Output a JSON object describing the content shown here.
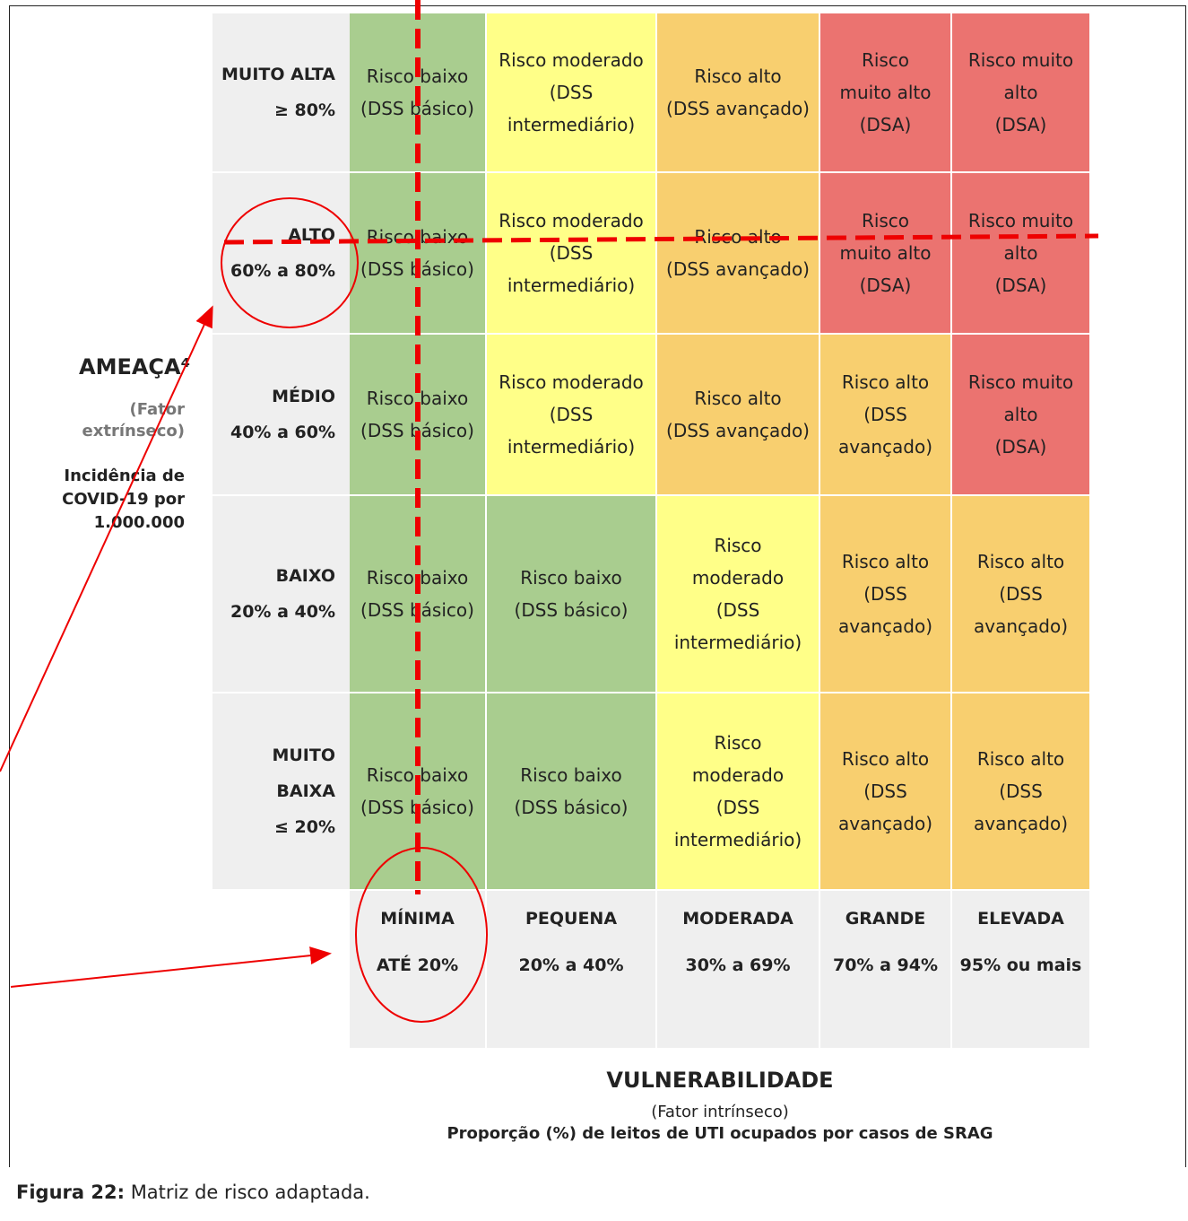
{
  "matrix": {
    "rows": [
      {
        "label_lines": [
          "MUITO ALTA",
          "≥ 80%"
        ],
        "cells": [
          {
            "color": "#a9cd8f",
            "lines": [
              "Risco baixo",
              "(DSS básico)"
            ]
          },
          {
            "color": "#ffff88",
            "lines": [
              "Risco moderado",
              "(DSS",
              "intermediário)"
            ]
          },
          {
            "color": "#f8cf6f",
            "lines": [
              "Risco alto",
              "(DSS avançado)"
            ]
          },
          {
            "color": "#eb7370",
            "lines": [
              "Risco",
              "muito alto",
              "(DSA)"
            ]
          },
          {
            "color": "#eb7370",
            "lines": [
              "Risco muito",
              "alto",
              "(DSA)"
            ]
          }
        ]
      },
      {
        "label_lines": [
          "ALTO",
          "60% a 80%"
        ],
        "cells": [
          {
            "color": "#a9cd8f",
            "lines": [
              "Risco baixo",
              "(DSS básico)"
            ]
          },
          {
            "color": "#ffff88",
            "lines": [
              "Risco moderado",
              "(DSS",
              "intermediário)"
            ]
          },
          {
            "color": "#f8cf6f",
            "lines": [
              "Risco alto",
              "(DSS avançado)"
            ]
          },
          {
            "color": "#eb7370",
            "lines": [
              "Risco",
              "muito alto",
              "(DSA)"
            ]
          },
          {
            "color": "#eb7370",
            "lines": [
              "Risco muito",
              "alto",
              "(DSA)"
            ]
          }
        ]
      },
      {
        "label_lines": [
          "MÉDIO",
          "40% a 60%"
        ],
        "cells": [
          {
            "color": "#a9cd8f",
            "lines": [
              "Risco baixo",
              "(DSS básico)"
            ]
          },
          {
            "color": "#ffff88",
            "lines": [
              "Risco moderado",
              "(DSS",
              "intermediário)"
            ]
          },
          {
            "color": "#f8cf6f",
            "lines": [
              "Risco alto",
              "(DSS avançado)"
            ]
          },
          {
            "color": "#f8cf6f",
            "lines": [
              "Risco alto",
              "(DSS",
              "avançado)"
            ]
          },
          {
            "color": "#eb7370",
            "lines": [
              "Risco muito",
              "alto",
              "(DSA)"
            ]
          }
        ]
      },
      {
        "label_lines": [
          "BAIXO",
          "20% a 40%"
        ],
        "cells": [
          {
            "color": "#a9cd8f",
            "lines": [
              "Risco baixo",
              "(DSS básico)"
            ]
          },
          {
            "color": "#a9cd8f",
            "lines": [
              "Risco baixo",
              "(DSS básico)"
            ]
          },
          {
            "color": "#ffff88",
            "lines": [
              "Risco",
              "moderado",
              "(DSS",
              "intermediário)"
            ]
          },
          {
            "color": "#f8cf6f",
            "lines": [
              "Risco alto",
              "(DSS",
              "avançado)"
            ]
          },
          {
            "color": "#f8cf6f",
            "lines": [
              "Risco alto",
              "(DSS",
              "avançado)"
            ]
          }
        ]
      },
      {
        "label_lines": [
          "MUITO",
          "BAIXA",
          "≤ 20%"
        ],
        "cells": [
          {
            "color": "#a9cd8f",
            "lines": [
              "Risco baixo",
              "(DSS básico)"
            ]
          },
          {
            "color": "#a9cd8f",
            "lines": [
              "Risco baixo",
              "(DSS básico)"
            ]
          },
          {
            "color": "#ffff88",
            "lines": [
              "Risco",
              "moderado",
              "(DSS",
              "intermediário)"
            ]
          },
          {
            "color": "#f8cf6f",
            "lines": [
              "Risco alto",
              "(DSS",
              "avançado)"
            ]
          },
          {
            "color": "#f8cf6f",
            "lines": [
              "Risco alto",
              "(DSS",
              "avançado)"
            ]
          }
        ]
      }
    ],
    "columns": [
      {
        "lines": [
          "MÍNIMA",
          "ATÉ 20%"
        ]
      },
      {
        "lines": [
          "PEQUENA",
          "20% a 40%"
        ]
      },
      {
        "lines": [
          "MODERADA",
          "30% a 69%"
        ]
      },
      {
        "lines": [
          "GRANDE",
          "70% a 94%"
        ]
      },
      {
        "lines": [
          "ELEVADA",
          "95% ou mais"
        ]
      }
    ],
    "y_axis": {
      "title": "AMEAÇA⁴",
      "subtitle": "(Fator extrínseco)",
      "description": "Incidência de COVID-19 por 1.000.000"
    },
    "x_axis": {
      "title": "VULNERABILIDADE",
      "subtitle": "(Fator intrínseco)",
      "description": "Proporção (%) de leitos de UTI ocupados por casos de SRAG"
    }
  },
  "caption": {
    "label": "Figura 22:",
    "text": "Matriz de risco adaptada."
  }
}
